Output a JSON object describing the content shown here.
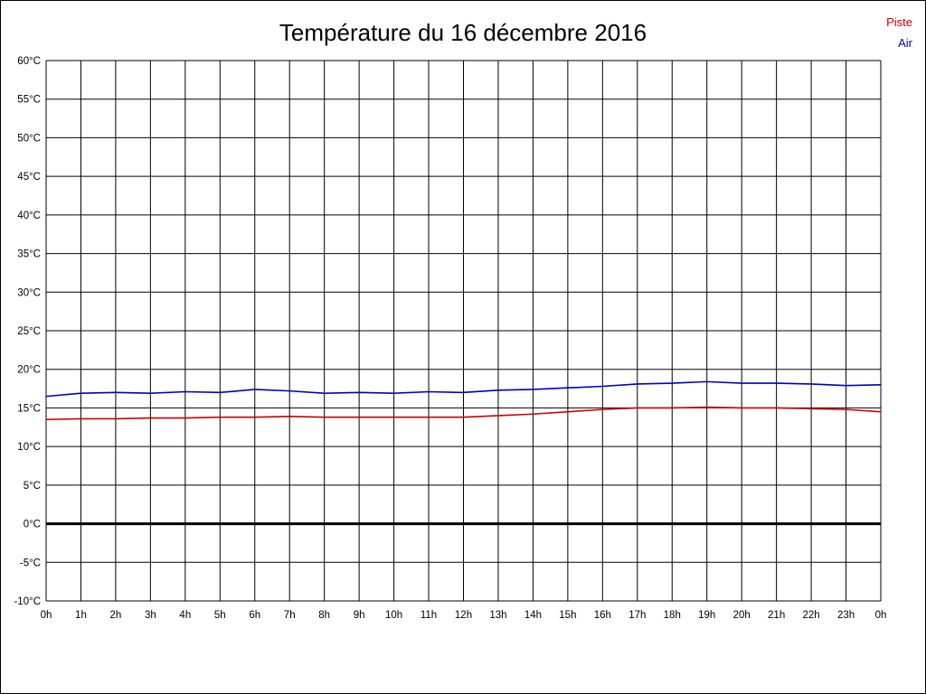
{
  "page": {
    "background": "#ffffff",
    "border_color": "#000000"
  },
  "chart_data": {
    "type": "line",
    "title": "Température du 16 décembre 2016",
    "xlabel": "",
    "ylabel": "",
    "x_range": [
      0,
      24
    ],
    "ylim": [
      -10,
      60
    ],
    "y_tick_step": 5,
    "y_tick_suffix": "°C",
    "grid": true,
    "grid_color": "#000000",
    "zero_line": {
      "value": 0,
      "color": "#000000",
      "width": 3
    },
    "x_tick_labels": [
      "0h",
      "1h",
      "2h",
      "3h",
      "4h",
      "5h",
      "6h",
      "7h",
      "8h",
      "9h",
      "10h",
      "11h",
      "12h",
      "13h",
      "14h",
      "15h",
      "16h",
      "17h",
      "18h",
      "19h",
      "20h",
      "21h",
      "22h",
      "23h",
      "0h"
    ],
    "legend": {
      "position": "top-right",
      "entries": [
        {
          "label": "Piste",
          "color": "#cc0000"
        },
        {
          "label": "Air",
          "color": "#0000bb"
        }
      ]
    },
    "series": [
      {
        "name": "Piste",
        "color": "#cc0000",
        "x": [
          0,
          1,
          2,
          3,
          4,
          5,
          6,
          7,
          8,
          9,
          10,
          11,
          12,
          13,
          14,
          15,
          16,
          17,
          18,
          19,
          20,
          21,
          22,
          23,
          24
        ],
        "values": [
          13.5,
          13.6,
          13.6,
          13.7,
          13.7,
          13.8,
          13.8,
          13.9,
          13.8,
          13.8,
          13.8,
          13.8,
          13.8,
          14.0,
          14.2,
          14.5,
          14.8,
          15.0,
          15.0,
          15.1,
          15.0,
          15.0,
          14.9,
          14.8,
          14.5
        ]
      },
      {
        "name": "Air",
        "color": "#0000bb",
        "x": [
          0,
          1,
          2,
          3,
          4,
          5,
          6,
          7,
          8,
          9,
          10,
          11,
          12,
          13,
          14,
          15,
          16,
          17,
          18,
          19,
          20,
          21,
          22,
          23,
          24
        ],
        "values": [
          16.5,
          16.9,
          17.0,
          16.9,
          17.1,
          17.0,
          17.4,
          17.2,
          16.9,
          17.0,
          16.9,
          17.1,
          17.0,
          17.3,
          17.4,
          17.6,
          17.8,
          18.1,
          18.2,
          18.4,
          18.2,
          18.2,
          18.1,
          17.9,
          18.0
        ]
      }
    ]
  }
}
